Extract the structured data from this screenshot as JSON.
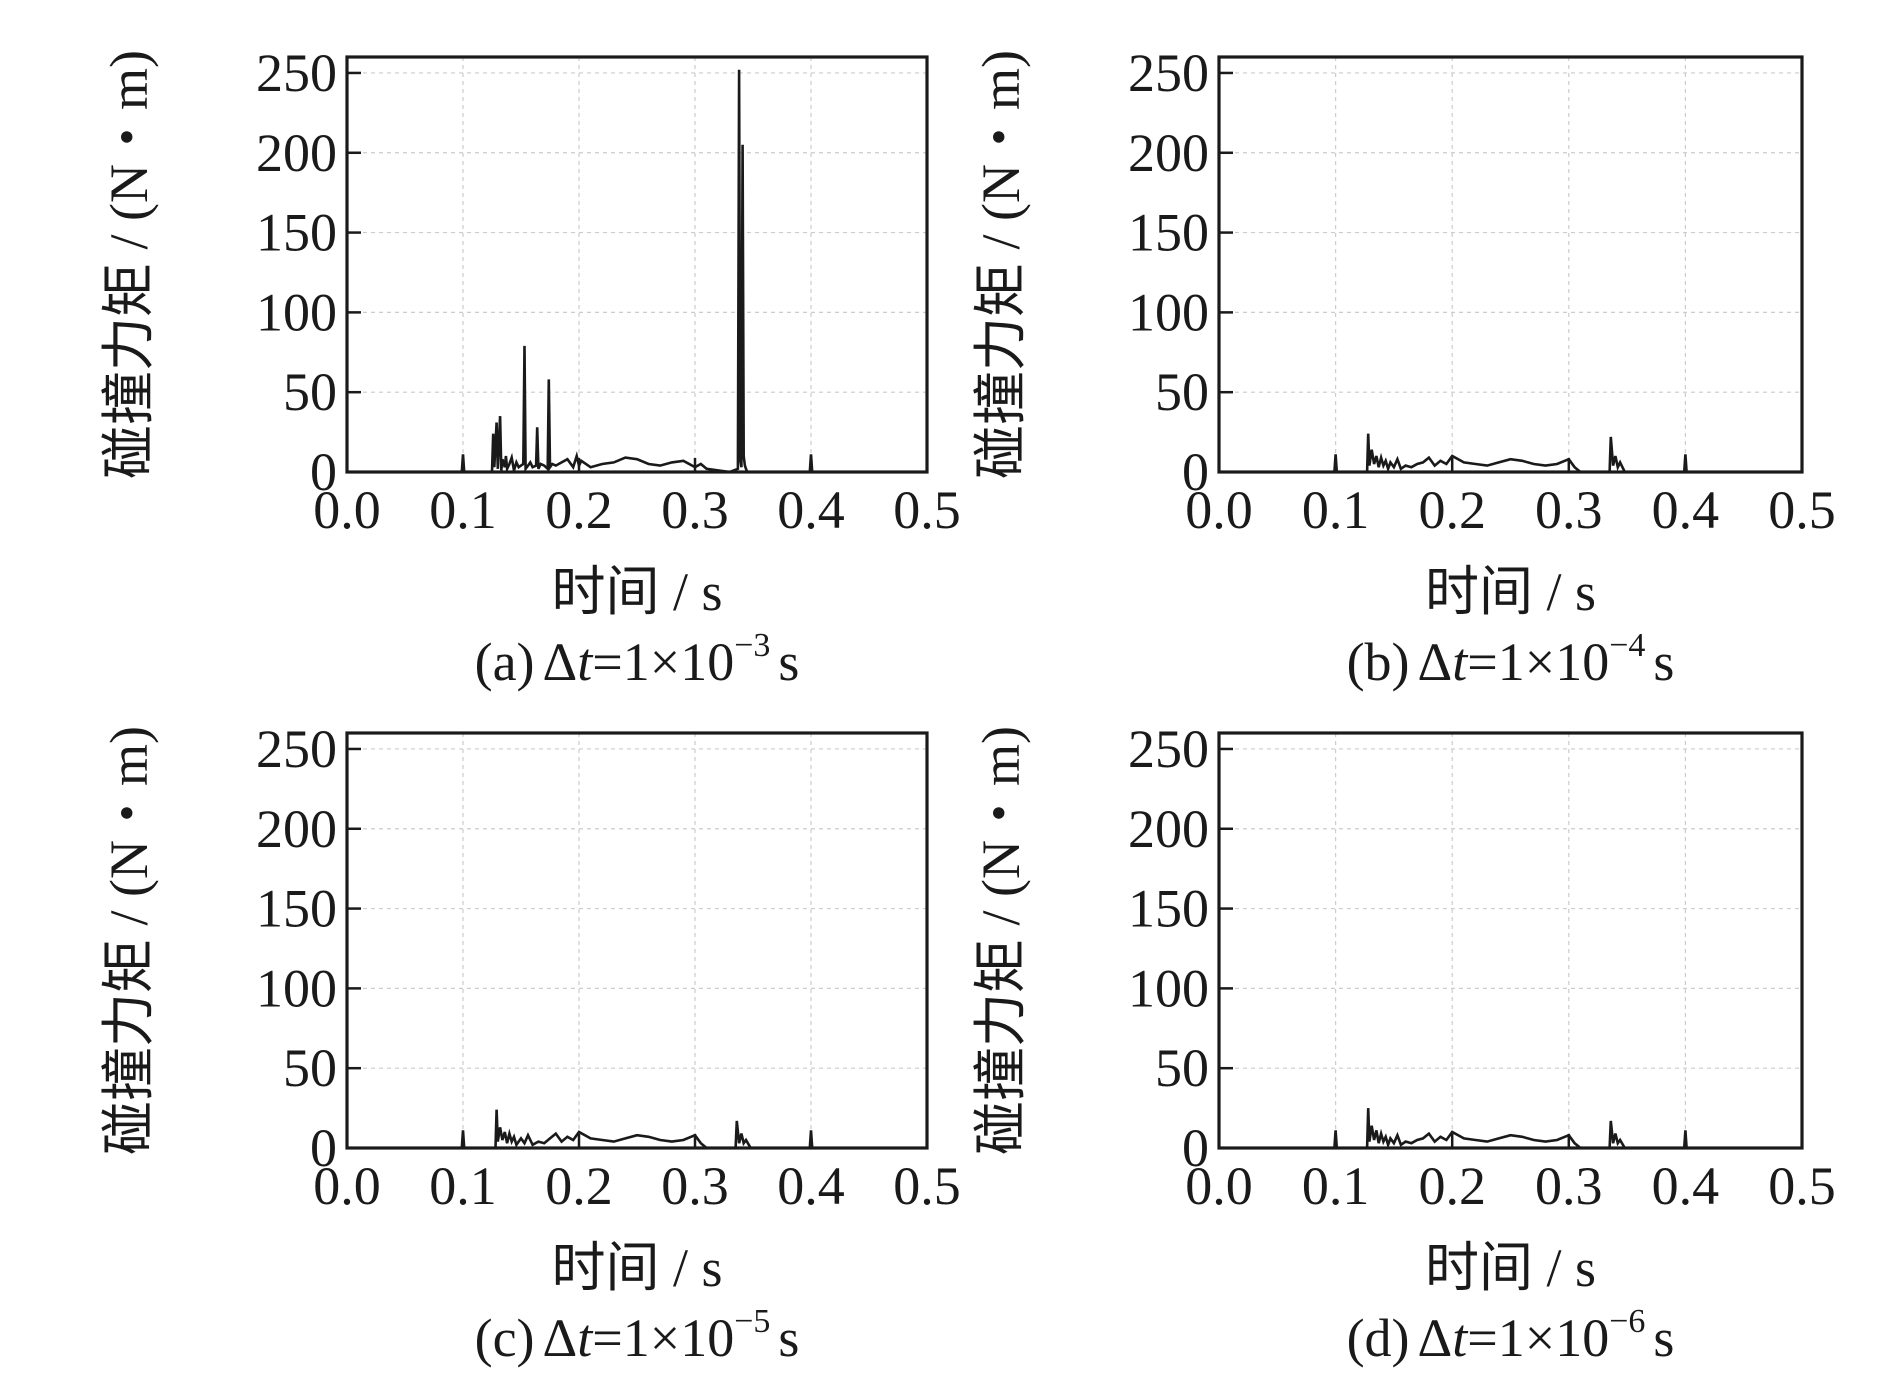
{
  "figure": {
    "panels": [
      {
        "caption_letter": "(a)",
        "caption_prefix": "Δ",
        "caption_var": "t",
        "caption_main": "=1×10",
        "caption_exp": "−3",
        "caption_unit": "s"
      },
      {
        "caption_letter": "(b)",
        "caption_prefix": "Δ",
        "caption_var": "t",
        "caption_main": "=1×10",
        "caption_exp": "−4",
        "caption_unit": "s"
      },
      {
        "caption_letter": "(c)",
        "caption_prefix": "Δ",
        "caption_var": "t",
        "caption_main": "=1×10",
        "caption_exp": "−5",
        "caption_unit": "s"
      },
      {
        "caption_letter": "(d)",
        "caption_prefix": "Δ",
        "caption_var": "t",
        "caption_main": "=1×10",
        "caption_exp": "−6",
        "caption_unit": "s"
      }
    ]
  },
  "chart_data": [
    {
      "type": "line",
      "xlabel": "时间 / s",
      "ylabel": "碰撞力矩 / (N・m)",
      "xlim": [
        0,
        0.5
      ],
      "ylim": [
        0,
        260
      ],
      "xticks": [
        "0.0",
        "0.1",
        "0.2",
        "0.3",
        "0.4",
        "0.5"
      ],
      "yticks": [
        "0",
        "50",
        "100",
        "150",
        "200",
        "250"
      ],
      "grid": true,
      "color": "#1a1a1a",
      "x": [
        0.0,
        0.099,
        0.1,
        0.101,
        0.125,
        0.126,
        0.127,
        0.129,
        0.13,
        0.132,
        0.133,
        0.134,
        0.136,
        0.137,
        0.138,
        0.14,
        0.142,
        0.144,
        0.146,
        0.148,
        0.152,
        0.153,
        0.154,
        0.156,
        0.158,
        0.16,
        0.163,
        0.164,
        0.165,
        0.167,
        0.17,
        0.173,
        0.174,
        0.175,
        0.177,
        0.18,
        0.185,
        0.19,
        0.195,
        0.198,
        0.2,
        0.202,
        0.21,
        0.22,
        0.23,
        0.24,
        0.25,
        0.26,
        0.27,
        0.28,
        0.29,
        0.3,
        0.305,
        0.31,
        0.33,
        0.337,
        0.338,
        0.339,
        0.34,
        0.341,
        0.342,
        0.343,
        0.344,
        0.345,
        0.346,
        0.347,
        0.35,
        0.399,
        0.4,
        0.401,
        0.5
      ],
      "y": [
        0,
        0,
        11,
        0,
        0,
        24,
        3,
        31,
        2,
        35,
        1,
        8,
        3,
        10,
        2,
        5,
        9,
        1,
        6,
        3,
        5,
        79,
        2,
        4,
        6,
        3,
        4,
        28,
        2,
        5,
        4,
        2,
        58,
        3,
        5,
        4,
        6,
        8,
        3,
        10,
        4,
        7,
        3,
        5,
        6,
        9,
        8,
        5,
        4,
        6,
        7,
        3,
        5,
        2,
        0,
        2,
        252,
        8,
        3,
        205,
        10,
        4,
        2,
        0,
        0,
        0,
        0,
        0,
        11,
        0,
        0
      ]
    },
    {
      "type": "line",
      "xlabel": "时间 / s",
      "ylabel": "碰撞力矩 / (N・m)",
      "xlim": [
        0,
        0.5
      ],
      "ylim": [
        0,
        260
      ],
      "xticks": [
        "0.0",
        "0.1",
        "0.2",
        "0.3",
        "0.4",
        "0.5"
      ],
      "yticks": [
        "0",
        "50",
        "100",
        "150",
        "200",
        "250"
      ],
      "grid": true,
      "color": "#1a1a1a",
      "x": [
        0.0,
        0.099,
        0.1,
        0.101,
        0.127,
        0.128,
        0.129,
        0.131,
        0.133,
        0.135,
        0.137,
        0.139,
        0.141,
        0.143,
        0.145,
        0.147,
        0.15,
        0.153,
        0.156,
        0.16,
        0.165,
        0.17,
        0.175,
        0.18,
        0.185,
        0.19,
        0.195,
        0.2,
        0.21,
        0.22,
        0.23,
        0.24,
        0.25,
        0.26,
        0.27,
        0.28,
        0.29,
        0.3,
        0.305,
        0.31,
        0.335,
        0.336,
        0.338,
        0.34,
        0.342,
        0.344,
        0.348,
        0.399,
        0.4,
        0.401,
        0.5
      ],
      "y": [
        0,
        0,
        11,
        0,
        0,
        24,
        4,
        14,
        5,
        10,
        3,
        9,
        4,
        7,
        2,
        6,
        3,
        8,
        2,
        4,
        3,
        5,
        6,
        9,
        4,
        7,
        5,
        10,
        6,
        5,
        4,
        6,
        8,
        7,
        5,
        4,
        5,
        8,
        3,
        0,
        0,
        22,
        4,
        10,
        3,
        6,
        0,
        0,
        11,
        0,
        0
      ]
    },
    {
      "type": "line",
      "xlabel": "时间 / s",
      "ylabel": "碰撞力矩 / (N・m)",
      "xlim": [
        0,
        0.5
      ],
      "ylim": [
        0,
        260
      ],
      "xticks": [
        "0.0",
        "0.1",
        "0.2",
        "0.3",
        "0.4",
        "0.5"
      ],
      "yticks": [
        "0",
        "50",
        "100",
        "150",
        "200",
        "250"
      ],
      "grid": true,
      "color": "#1a1a1a",
      "x": [
        0.0,
        0.099,
        0.1,
        0.101,
        0.128,
        0.129,
        0.13,
        0.132,
        0.134,
        0.136,
        0.138,
        0.14,
        0.142,
        0.144,
        0.146,
        0.15,
        0.153,
        0.156,
        0.16,
        0.165,
        0.17,
        0.175,
        0.18,
        0.185,
        0.19,
        0.195,
        0.2,
        0.21,
        0.22,
        0.23,
        0.24,
        0.25,
        0.26,
        0.27,
        0.28,
        0.29,
        0.3,
        0.305,
        0.31,
        0.335,
        0.336,
        0.338,
        0.34,
        0.342,
        0.344,
        0.348,
        0.399,
        0.4,
        0.401,
        0.5
      ],
      "y": [
        0,
        0,
        11,
        0,
        0,
        24,
        4,
        13,
        5,
        10,
        3,
        9,
        4,
        7,
        2,
        6,
        3,
        8,
        2,
        4,
        3,
        6,
        9,
        4,
        7,
        5,
        10,
        6,
        5,
        4,
        6,
        8,
        7,
        5,
        4,
        5,
        8,
        3,
        0,
        0,
        17,
        3,
        9,
        3,
        5,
        0,
        0,
        11,
        0,
        0
      ]
    },
    {
      "type": "line",
      "xlabel": "时间 / s",
      "ylabel": "碰撞力矩 / (N・m)",
      "xlim": [
        0,
        0.5
      ],
      "ylim": [
        0,
        260
      ],
      "xticks": [
        "0.0",
        "0.1",
        "0.2",
        "0.3",
        "0.4",
        "0.5"
      ],
      "yticks": [
        "0",
        "50",
        "100",
        "150",
        "200",
        "250"
      ],
      "grid": true,
      "color": "#1a1a1a",
      "x": [
        0.0,
        0.099,
        0.1,
        0.101,
        0.127,
        0.128,
        0.129,
        0.131,
        0.133,
        0.135,
        0.137,
        0.139,
        0.141,
        0.143,
        0.145,
        0.147,
        0.15,
        0.153,
        0.156,
        0.16,
        0.165,
        0.17,
        0.175,
        0.18,
        0.185,
        0.19,
        0.195,
        0.2,
        0.21,
        0.22,
        0.23,
        0.24,
        0.25,
        0.26,
        0.27,
        0.28,
        0.29,
        0.3,
        0.305,
        0.31,
        0.335,
        0.336,
        0.338,
        0.34,
        0.342,
        0.344,
        0.348,
        0.399,
        0.4,
        0.401,
        0.5
      ],
      "y": [
        0,
        0,
        11,
        0,
        0,
        25,
        4,
        14,
        5,
        11,
        3,
        9,
        4,
        7,
        2,
        6,
        3,
        8,
        2,
        4,
        3,
        5,
        6,
        9,
        4,
        7,
        5,
        10,
        6,
        5,
        4,
        6,
        8,
        7,
        5,
        4,
        5,
        8,
        3,
        0,
        0,
        17,
        3,
        9,
        3,
        5,
        0,
        0,
        11,
        0,
        0
      ]
    }
  ]
}
